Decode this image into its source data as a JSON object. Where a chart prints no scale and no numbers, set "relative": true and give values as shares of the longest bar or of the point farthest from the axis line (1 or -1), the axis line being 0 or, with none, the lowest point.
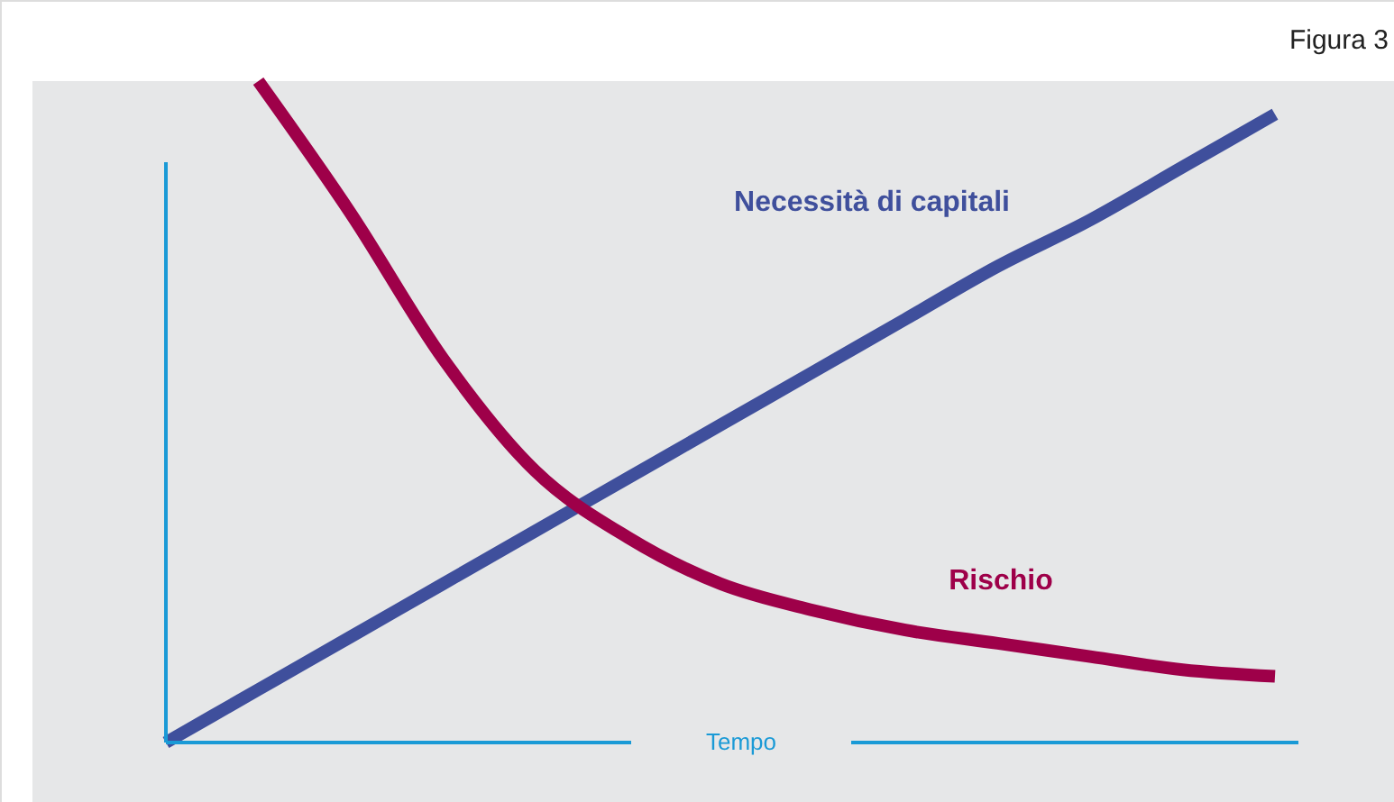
{
  "chart_data": {
    "type": "line",
    "title": "Figura 3",
    "xlabel": "Tempo",
    "relative": true,
    "legend": false,
    "marker": "none",
    "line_style": "solid",
    "categories": [
      null,
      null,
      null,
      null,
      null,
      null,
      null,
      null,
      null,
      null,
      null,
      null,
      null
    ],
    "series": [
      {
        "name": "Necessità di capitali",
        "color": "#3f4f9c",
        "values": [
          0,
          0.08,
          0.16,
          0.24,
          0.32,
          0.4,
          0.48,
          0.56,
          0.64,
          0.72,
          0.79,
          0.87,
          0.95
        ]
      },
      {
        "name": "Rischio",
        "color": "#9e0049",
        "values": [
          null,
          1,
          0.8,
          0.58,
          0.41,
          0.31,
          0.24,
          0.2,
          0.17,
          0.15,
          0.13,
          0.11,
          0.1
        ]
      }
    ]
  }
}
